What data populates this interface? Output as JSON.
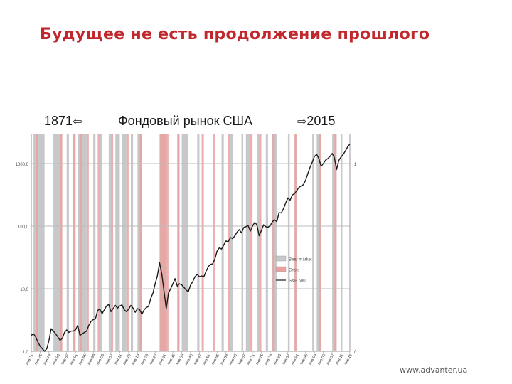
{
  "slide": {
    "title": "Будущее не есть продолжение прошлого",
    "caption_start": "1871",
    "caption_middle": "Фондовый рынок США",
    "caption_end": "2015",
    "footer_url": "www.advanter.ua"
  },
  "icons": {
    "arrow_left": "arrow-left-icon",
    "arrow_right": "arrow-right-icon"
  },
  "colors": {
    "title": "#c0282d",
    "bear_market": "#c6c8c9",
    "crisis": "#e8a3a1",
    "crisis_dark": "#d9807d",
    "line": "#1a1a1a",
    "grid": "#bdbdbd"
  },
  "chart_data": {
    "type": "line",
    "x_range": [
      1871,
      2015
    ],
    "y_scale": "log",
    "y_range": [
      1,
      3000
    ],
    "y_ticks": [
      {
        "value": 1,
        "label": "1,0"
      },
      {
        "value": 10,
        "label": "10,0"
      },
      {
        "value": 100,
        "label": "100,0"
      },
      {
        "value": 1000,
        "label": "1000,0"
      }
    ],
    "right_axis_labels": [
      {
        "value": 1,
        "label": "0"
      },
      {
        "value": 1000,
        "label": "1"
      }
    ],
    "x_tick_labels": [
      "янв.71",
      "янв.75",
      "янв.79",
      "янв.83",
      "янв.87",
      "янв.91",
      "янв.95",
      "янв.99",
      "янв.03",
      "янв.07",
      "янв.11",
      "янв.15",
      "янв.19",
      "янв.23",
      "янв.27",
      "янв.31",
      "янв.35",
      "янв.39",
      "янв.43",
      "янв.47",
      "янв.51",
      "янв.55",
      "янв.59",
      "янв.63",
      "янв.67",
      "янв.71",
      "янв.75",
      "янв.79",
      "янв.83",
      "янв.87",
      "янв.91",
      "янв.95",
      "янв.99",
      "янв.03",
      "янв.07",
      "янв.11",
      "янв.15"
    ],
    "legend": {
      "placement": "right-middle",
      "entries": [
        {
          "name": "Bear market",
          "type": "band"
        },
        {
          "name": "Crisis",
          "type": "band"
        },
        {
          "name": "S&P 500",
          "type": "line"
        }
      ]
    },
    "bear_markets": [
      [
        1872,
        1877
      ],
      [
        1881,
        1885
      ],
      [
        1887,
        1888
      ],
      [
        1890,
        1891
      ],
      [
        1892,
        1896
      ],
      [
        1899,
        1900
      ],
      [
        1902,
        1903
      ],
      [
        1906,
        1907
      ],
      [
        1909,
        1911
      ],
      [
        1912,
        1914
      ],
      [
        1916,
        1917
      ],
      [
        1919,
        1921
      ],
      [
        1929,
        1932
      ],
      [
        1937,
        1938
      ],
      [
        1939,
        1942
      ],
      [
        1946,
        1947
      ],
      [
        1957,
        1958
      ],
      [
        1961,
        1962
      ],
      [
        1966,
        1966.8
      ],
      [
        1968,
        1970
      ],
      [
        1973,
        1974
      ],
      [
        1977,
        1978
      ],
      [
        1980,
        1982
      ],
      [
        1987,
        1987.8
      ],
      [
        1990,
        1990.8
      ],
      [
        1998,
        1998.8
      ],
      [
        2000,
        2002
      ],
      [
        2007,
        2009
      ],
      [
        2011,
        2011.6
      ]
    ],
    "crises": [
      [
        1873,
        1874
      ],
      [
        1884,
        1885
      ],
      [
        1890,
        1891
      ],
      [
        1893,
        1894
      ],
      [
        1896,
        1897
      ],
      [
        1901,
        1902
      ],
      [
        1907,
        1908
      ],
      [
        1914,
        1915
      ],
      [
        1920,
        1921
      ],
      [
        1929,
        1933
      ],
      [
        1937,
        1938
      ],
      [
        1948,
        1949
      ],
      [
        1953,
        1954
      ],
      [
        1960,
        1961
      ],
      [
        1970,
        1971
      ],
      [
        1974,
        1975
      ],
      [
        1980,
        1981
      ],
      [
        1990,
        1991
      ],
      [
        2001,
        2002
      ],
      [
        2008,
        2009
      ]
    ],
    "series": [
      {
        "name": "S&P 500",
        "x": [
          1871,
          1872,
          1873,
          1874,
          1875,
          1876,
          1877,
          1878,
          1879,
          1880,
          1881,
          1882,
          1883,
          1884,
          1885,
          1886,
          1887,
          1888,
          1889,
          1890,
          1891,
          1892,
          1893,
          1894,
          1895,
          1896,
          1897,
          1898,
          1899,
          1900,
          1901,
          1902,
          1903,
          1904,
          1905,
          1906,
          1907,
          1908,
          1909,
          1910,
          1911,
          1912,
          1913,
          1914,
          1915,
          1916,
          1917,
          1918,
          1919,
          1920,
          1921,
          1922,
          1923,
          1924,
          1925,
          1926,
          1927,
          1928,
          1929,
          1930,
          1931,
          1932,
          1933,
          1934,
          1935,
          1936,
          1937,
          1938,
          1939,
          1940,
          1941,
          1942,
          1943,
          1944,
          1945,
          1946,
          1947,
          1948,
          1949,
          1950,
          1951,
          1952,
          1953,
          1954,
          1955,
          1956,
          1957,
          1958,
          1959,
          1960,
          1961,
          1962,
          1963,
          1964,
          1965,
          1966,
          1967,
          1968,
          1969,
          1970,
          1971,
          1972,
          1973,
          1974,
          1975,
          1976,
          1977,
          1978,
          1979,
          1980,
          1981,
          1982,
          1983,
          1984,
          1985,
          1986,
          1987,
          1988,
          1989,
          1990,
          1991,
          1992,
          1993,
          1994,
          1995,
          1996,
          1997,
          1998,
          1999,
          2000,
          2001,
          2002,
          2003,
          2004,
          2005,
          2006,
          2007,
          2008,
          2009,
          2010,
          2011,
          2012,
          2013,
          2014,
          2015
        ],
        "y": [
          1.8,
          1.9,
          1.7,
          1.4,
          1.2,
          1.1,
          1.0,
          1.1,
          1.5,
          2.3,
          2.1,
          1.9,
          1.7,
          1.5,
          1.6,
          2.0,
          2.2,
          2.0,
          2.1,
          2.1,
          2.2,
          2.6,
          1.8,
          1.9,
          2.0,
          2.1,
          2.6,
          3.0,
          3.2,
          3.3,
          4.5,
          4.7,
          4.0,
          4.6,
          5.3,
          5.6,
          4.3,
          4.8,
          5.4,
          4.9,
          5.3,
          5.5,
          4.6,
          4.3,
          4.7,
          5.4,
          4.9,
          4.2,
          4.8,
          4.6,
          3.9,
          4.6,
          5.0,
          5.2,
          7.0,
          8.5,
          12.0,
          16.0,
          26.0,
          17.0,
          9.0,
          4.8,
          8.5,
          10.0,
          12.0,
          14.5,
          11.0,
          12.0,
          11.5,
          10.5,
          9.5,
          9.0,
          11.5,
          13.0,
          15.5,
          17.0,
          15.5,
          16.0,
          15.5,
          19.0,
          22.5,
          24.5,
          25.0,
          30.0,
          40.0,
          45.0,
          43.0,
          50.0,
          58.0,
          56.0,
          66.0,
          63.0,
          70.0,
          80.0,
          88.0,
          78.0,
          95.0,
          98.0,
          102.0,
          83.0,
          100.0,
          115.0,
          105.0,
          70.0,
          85.0,
          105.0,
          98.0,
          96.0,
          102.0,
          118.0,
          126.0,
          118.0,
          165.0,
          162.0,
          190.0,
          235.0,
          282.0,
          260.0,
          315.0,
          330.0,
          370.0,
          415.0,
          440.0,
          460.0,
          540.0,
          690.0,
          870.0,
          1050.0,
          1300.0,
          1400.0,
          1200.0,
          900.0,
          1000.0,
          1130.0,
          1200.0,
          1300.0,
          1450.0,
          1250.0,
          800.0,
          1120.0,
          1280.0,
          1400.0,
          1600.0,
          1850.0,
          2050.0
        ]
      }
    ]
  }
}
